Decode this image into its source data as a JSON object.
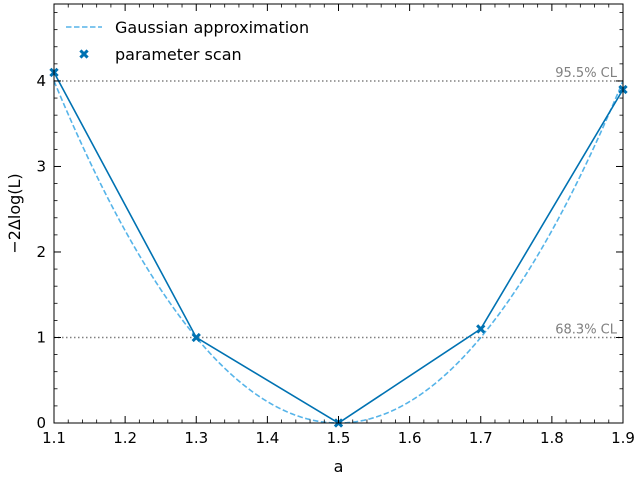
{
  "chart_data": {
    "type": "line",
    "xlabel": "a",
    "ylabel": "−2Δlog(L)",
    "xlim": [
      1.1,
      1.9
    ],
    "ylim": [
      0,
      4.9
    ],
    "x_ticks": [
      1.1,
      1.2,
      1.3,
      1.4,
      1.5,
      1.6,
      1.7,
      1.8,
      1.9
    ],
    "y_ticks": [
      0,
      1,
      2,
      3,
      4
    ],
    "x_tick_labels": [
      "1.1",
      "1.2",
      "1.3",
      "1.4",
      "1.5",
      "1.6",
      "1.7",
      "1.8",
      "1.9"
    ],
    "y_tick_labels": [
      "0",
      "1",
      "2",
      "3",
      "4"
    ],
    "grid": false,
    "legend_position": "top-left",
    "series": [
      {
        "name": "Gaussian approximation",
        "style": "dashed-line",
        "color": "#56b4e9",
        "function": "((a - 1.5) / 0.2)^2",
        "x": [
          1.1,
          1.3,
          1.5,
          1.7,
          1.9
        ],
        "y": [
          4.0,
          1.0,
          0.0,
          1.0,
          4.0
        ]
      },
      {
        "name": "parameter scan",
        "style": "line-with-x-markers",
        "color": "#0072b2",
        "x": [
          1.1,
          1.3,
          1.5,
          1.7,
          1.9
        ],
        "y": [
          4.1,
          1.0,
          0.0,
          1.1,
          3.9
        ]
      }
    ],
    "reference_lines": [
      {
        "y": 1,
        "label": "68.3% CL",
        "color": "#808080",
        "style": "dotted"
      },
      {
        "y": 4,
        "label": "95.5% CL",
        "color": "#808080",
        "style": "dotted"
      }
    ]
  }
}
